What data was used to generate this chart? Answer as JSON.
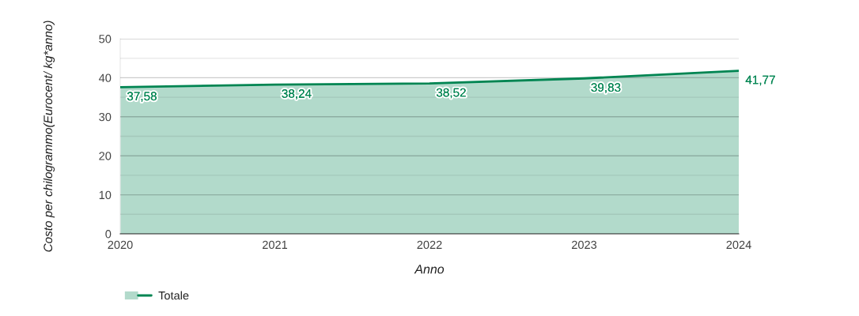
{
  "chart_data": {
    "type": "area",
    "xlabel": "Anno",
    "ylabel": "Costo per chilogrammo(Eurocent/ kg*anno)",
    "x": [
      2020,
      2021,
      2022,
      2023,
      2024
    ],
    "series": [
      {
        "name": "Totale",
        "color": "#008552",
        "values": [
          37.58,
          38.24,
          38.52,
          39.83,
          41.77
        ],
        "value_labels": [
          "37,58",
          "38,24",
          "38,52",
          "39,83",
          "41,77"
        ]
      }
    ],
    "xlim": [
      2020,
      2024
    ],
    "xticks": [
      2020,
      2021,
      2022,
      2023,
      2024
    ],
    "ylim": [
      0,
      50
    ],
    "yticks": [
      0,
      {
        "value": 5,
        "label": null
      },
      10,
      {
        "value": 15,
        "label": null
      },
      20,
      {
        "value": 25,
        "label": null
      },
      30,
      {
        "value": 35,
        "label": null
      },
      40,
      {
        "value": 45,
        "label": null
      },
      50
    ],
    "grid": "y",
    "legend": "bottom left",
    "marker": "none",
    "line_style": "solid"
  }
}
